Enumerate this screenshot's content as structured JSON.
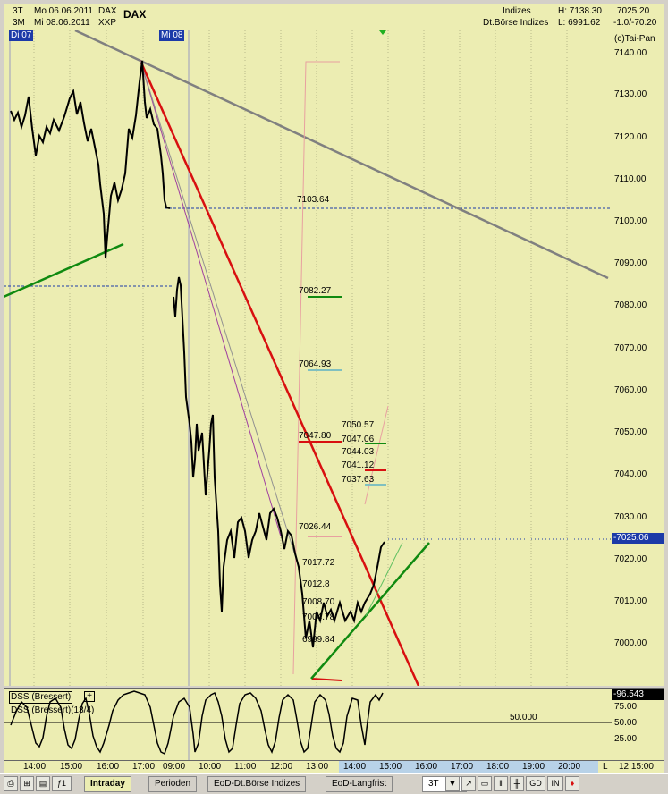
{
  "header": {
    "interval_1": "3T",
    "date_1": "Mo 06.06.2011",
    "symbol_1": "DAX",
    "interval_2": "3M",
    "date_2": "Mi 08.06.2011",
    "symbol_2": "XXP",
    "title": "DAX",
    "category": "Indizes",
    "exchange": "Dt.Börse Indizes",
    "high": "H: 7138.30",
    "low": "L: 6991.62",
    "last": "7025.20",
    "change": "-1.0/-70.20",
    "copyright": "(c)Tai-Pan",
    "day_tag_1": "Di 07",
    "day_tag_2": "Mi 08"
  },
  "price_scale": [
    "7140.00",
    "7130.00",
    "7120.00",
    "7110.00",
    "7100.00",
    "7090.00",
    "7080.00",
    "7070.00",
    "7060.00",
    "7050.00",
    "7040.00",
    "7030.00",
    "7020.00",
    "7010.00",
    "7000.00"
  ],
  "current_price_tag": "-7025.06",
  "levels": {
    "l1": "7103.64",
    "l2": "7082.27",
    "l3": "7064.93",
    "l4": "7050.57",
    "l5": "7047.80",
    "l6": "7047.06",
    "l7": "7044.03",
    "l8": "7041.12",
    "l9": "7037.63",
    "l10": "7026.44",
    "l11": "7017.72",
    "l12": "7012.8",
    "l13": "7008.70",
    "l14": "7004.78",
    "l15": "6999.84"
  },
  "oscillator": {
    "title_box": "DSS (Bressert)",
    "title": "DSS (Bressert)(13/4)",
    "value_tag": "-96.543",
    "midline_label": "50.000",
    "scale": [
      "75.00",
      "50.00",
      "25.00"
    ]
  },
  "time_axis": [
    "14:00",
    "15:00",
    "16:00",
    "17:00",
    "09:00",
    "10:00",
    "11:00",
    "12:00",
    "13:00",
    "14:00",
    "15:00",
    "16:00",
    "17:00",
    "18:00",
    "19:00",
    "20:00",
    "L",
    "12:15:00"
  ],
  "tabs": [
    "Intraday",
    "Perioden",
    "EoD-Dt.Börse Indizes",
    "EoD-Langfrist"
  ],
  "toolbar": {
    "interval_select": "3T",
    "gd": "GD",
    "in": "IN"
  },
  "colors": {
    "chart_bg": "#ecedb2",
    "trend_red": "#d81010",
    "trend_green": "#108a10",
    "trend_gray": "#808080",
    "tag_blue": "#1c3aa8"
  }
}
